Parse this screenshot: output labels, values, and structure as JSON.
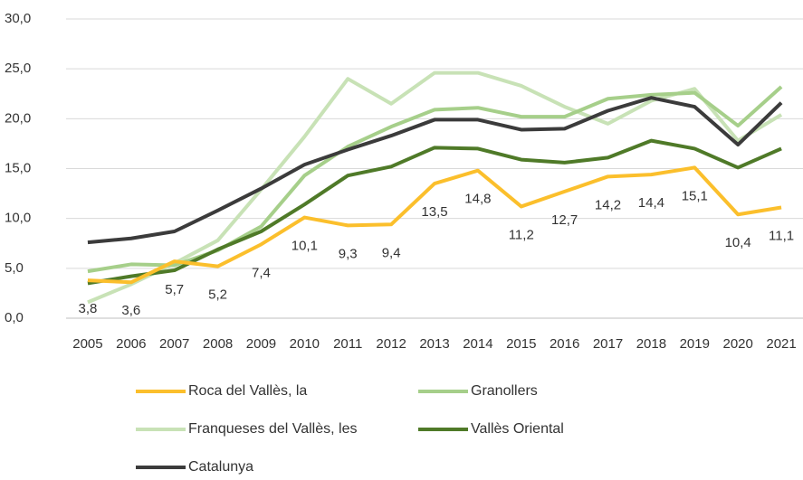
{
  "chart_data": {
    "type": "line",
    "categories": [
      "2005",
      "2006",
      "2007",
      "2008",
      "2009",
      "2010",
      "2011",
      "2012",
      "2013",
      "2014",
      "2015",
      "2016",
      "2017",
      "2018",
      "2019",
      "2020",
      "2021"
    ],
    "series": [
      {
        "name": "Roca del Vallès, la",
        "color": "#fbbf2c",
        "values": [
          3.8,
          3.6,
          5.7,
          5.2,
          7.4,
          10.1,
          9.3,
          9.4,
          13.5,
          14.8,
          11.2,
          12.7,
          14.2,
          14.4,
          15.1,
          10.4,
          11.1
        ],
        "value_labels": [
          "3,8",
          "3,6",
          "5,7",
          "5,2",
          "7,4",
          "10,1",
          "9,3",
          "9,4",
          "13,5",
          "14,8",
          "11,2",
          "12,7",
          "14,2",
          "14,4",
          "15,1",
          "10,4",
          "11,1"
        ]
      },
      {
        "name": "Granollers",
        "color": "#a6cf8a",
        "values": [
          4.7,
          5.4,
          5.3,
          6.8,
          9.2,
          14.3,
          17.2,
          19.2,
          20.9,
          21.1,
          20.2,
          20.2,
          22.0,
          22.4,
          22.6,
          19.3,
          23.2
        ]
      },
      {
        "name": "Franqueses del Vallès, les",
        "color": "#c8e2b6",
        "values": [
          1.6,
          3.4,
          5.5,
          7.8,
          12.9,
          18.2,
          24.0,
          21.5,
          24.6,
          24.6,
          23.3,
          21.2,
          19.5,
          21.8,
          23.0,
          17.8,
          20.4
        ]
      },
      {
        "name": "Vallès Oriental",
        "color": "#4f7a28",
        "values": [
          3.5,
          4.2,
          4.8,
          6.9,
          8.7,
          11.4,
          14.3,
          15.2,
          17.1,
          17.0,
          15.9,
          15.6,
          16.1,
          17.8,
          17.0,
          15.1,
          17.0
        ]
      },
      {
        "name": "Catalunya",
        "color": "#3b3b3b",
        "values": [
          7.6,
          8.0,
          8.7,
          10.8,
          13.0,
          15.4,
          16.9,
          18.3,
          19.9,
          19.9,
          18.9,
          19.0,
          20.8,
          22.1,
          21.2,
          17.4,
          21.6
        ]
      }
    ],
    "ylim": [
      0,
      30
    ],
    "yticks": [
      {
        "value": 0,
        "label": "0,0"
      },
      {
        "value": 5,
        "label": "5,0"
      },
      {
        "value": 10,
        "label": "10,0"
      },
      {
        "value": 15,
        "label": "15,0"
      },
      {
        "value": 20,
        "label": "20,0"
      },
      {
        "value": 25,
        "label": "25,0"
      },
      {
        "value": 30,
        "label": "30,0"
      }
    ],
    "grid": true
  }
}
